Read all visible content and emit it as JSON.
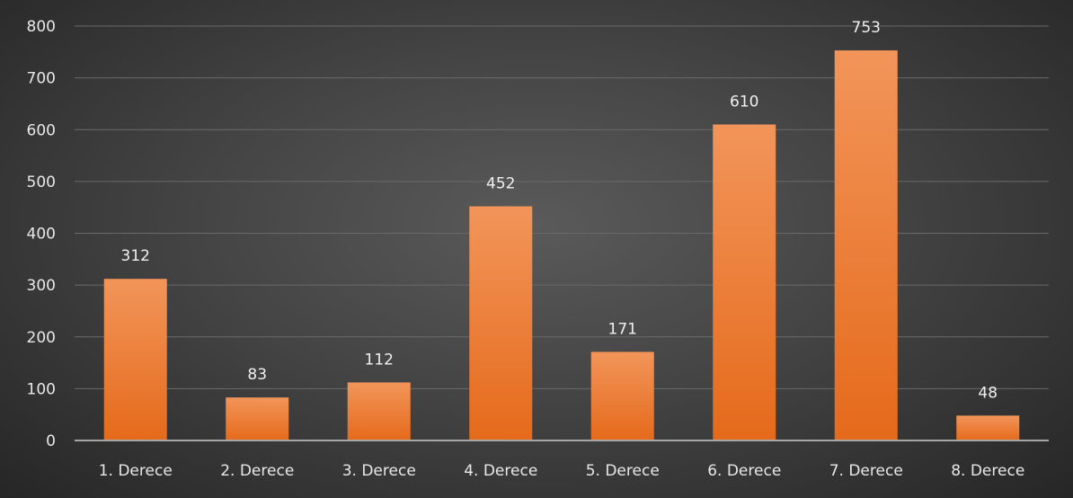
{
  "chart_data": {
    "type": "bar",
    "title": "",
    "xlabel": "",
    "ylabel": "",
    "categories": [
      "1. Derece",
      "2. Derece",
      "3. Derece",
      "4. Derece",
      "5. Derece",
      "6. Derece",
      "7. Derece",
      "8. Derece"
    ],
    "values": [
      312,
      83,
      112,
      452,
      171,
      610,
      753,
      48
    ],
    "data_labels": [
      "312",
      "83",
      "112",
      "452",
      "171",
      "610",
      "753",
      "48"
    ],
    "ylim": [
      0,
      800
    ],
    "yticks": [
      0,
      100,
      200,
      300,
      400,
      500,
      600,
      700,
      800
    ],
    "ytick_labels": [
      "0",
      "100",
      "200",
      "300",
      "400",
      "500",
      "600",
      "700",
      "800"
    ],
    "grid": true,
    "legend": "none"
  },
  "colors": {
    "bar_top": "#f2955a",
    "bar_bottom": "#e56a1b",
    "gridline": "#6a6a6a",
    "axis": "#a6a6a6",
    "text": "#e8e8e8"
  }
}
